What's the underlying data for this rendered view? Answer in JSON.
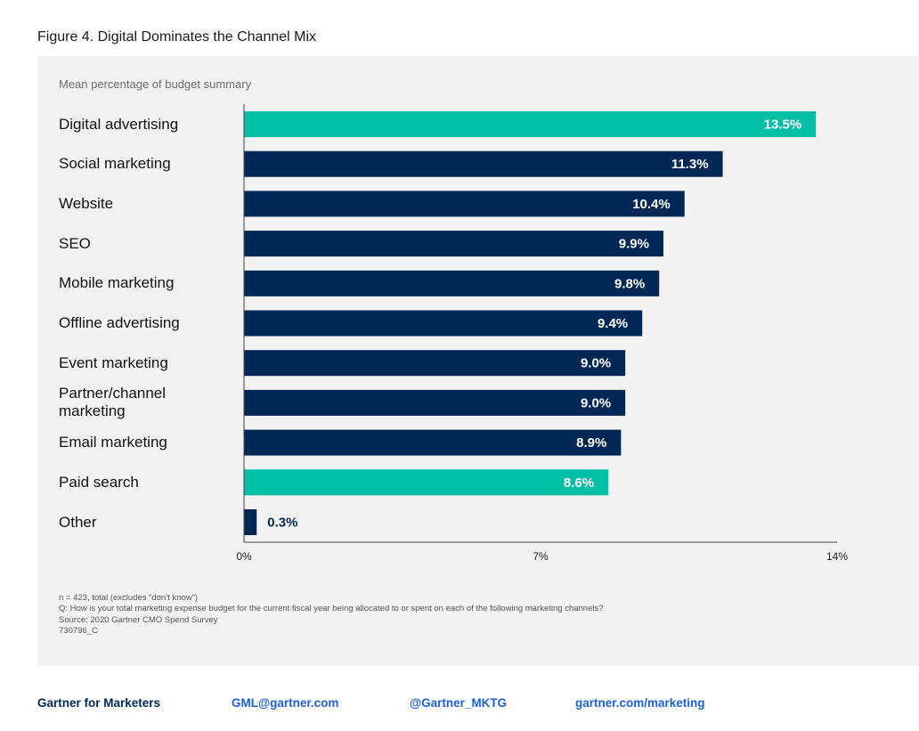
{
  "figure_title": "Figure 4. Digital Dominates the Channel Mix",
  "chart_data": {
    "type": "bar",
    "orientation": "horizontal",
    "subtitle": "Mean percentage of budget summary",
    "categories": [
      "Digital advertising",
      "Social marketing",
      "Website",
      "SEO",
      "Mobile marketing",
      "Offline advertising",
      "Event marketing",
      "Partner/channel marketing",
      "Email marketing",
      "Paid search",
      "Other"
    ],
    "values": [
      13.5,
      11.3,
      10.4,
      9.9,
      9.8,
      9.4,
      9.0,
      9.0,
      8.9,
      8.6,
      0.3
    ],
    "value_labels": [
      "13.5%",
      "11.3%",
      "10.4%",
      "9.9%",
      "9.8%",
      "9.4%",
      "9.0%",
      "9.0%",
      "8.9%",
      "8.6%",
      "0.3%"
    ],
    "highlight": [
      true,
      false,
      false,
      false,
      false,
      false,
      false,
      false,
      false,
      true,
      false
    ],
    "xlim": [
      0,
      14
    ],
    "xticks": [
      0,
      7,
      14
    ],
    "xtick_labels": [
      "0%",
      "7%",
      "14%"
    ],
    "grid": false,
    "colors": {
      "bar": "#002856",
      "highlight": "#00bfa5",
      "label_inside": "#ffffff",
      "label_outside": "#002856",
      "axis": "#444444"
    }
  },
  "notes": [
    "n = 423, total (excludes “don’t know”)",
    "Q: How is your total marketing expense budget for the current fiscal year being allocated to or spent on each of the following marketing channels?",
    "Source: 2020 Gartner CMO Spend Survey",
    "730796_C"
  ],
  "footer": {
    "brand": "Gartner for Marketers",
    "email": "GML@gartner.com",
    "twitter": "@Gartner_MKTG",
    "website": "gartner.com/marketing"
  }
}
